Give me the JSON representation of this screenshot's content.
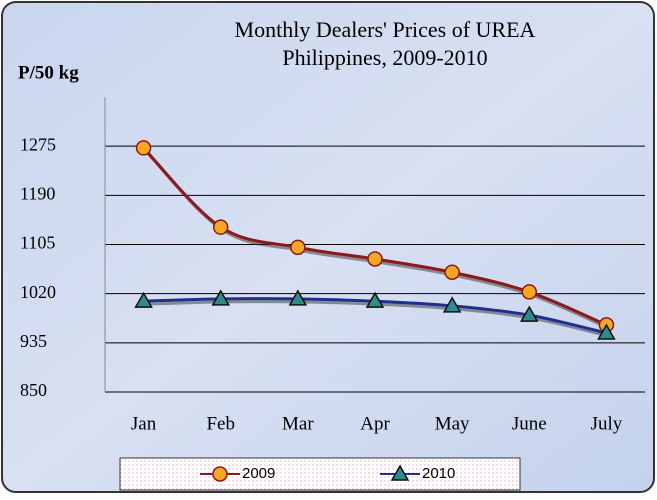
{
  "chart_data": {
    "type": "line",
    "title": "Monthly Dealers' Prices of UREA",
    "subtitle": "Philippines, 2009-2010",
    "y_label": "P/50 kg",
    "categories": [
      "Jan",
      "Feb",
      "Mar",
      "Apr",
      "May",
      "June",
      "July"
    ],
    "series": [
      {
        "name": "2009",
        "color": "#8b1a1a",
        "marker_color": "#f5a623",
        "marker": "circle",
        "values": [
          1272,
          1135,
          1100,
          1080,
          1057,
          1023,
          966
        ]
      },
      {
        "name": "2010",
        "color": "#1f2f8f",
        "marker_color": "#2e8b8b",
        "marker": "triangle",
        "values": [
          1007,
          1011,
          1011,
          1007,
          999,
          983,
          952
        ]
      }
    ],
    "ylim": [
      850,
      1360
    ],
    "yticks": [
      850,
      935,
      1020,
      1105,
      1190,
      1275
    ],
    "grid": true,
    "legend": "bottom"
  }
}
